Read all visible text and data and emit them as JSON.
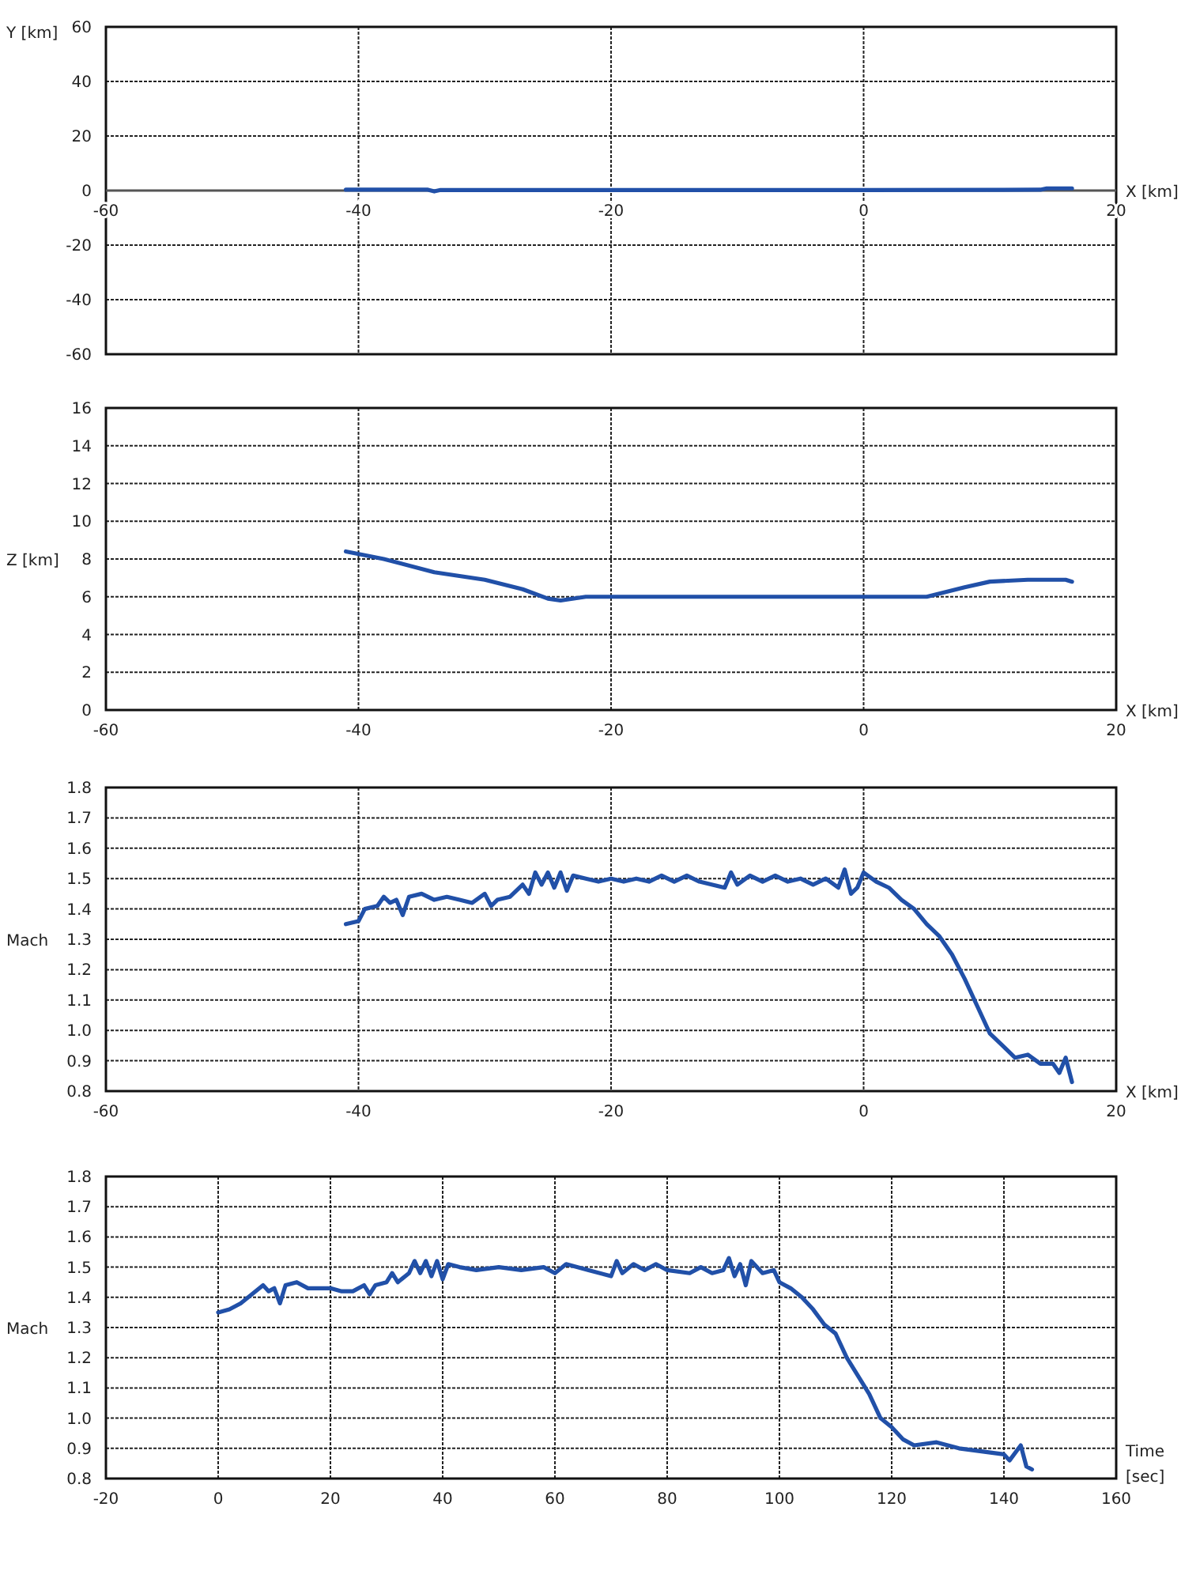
{
  "chart_data": [
    {
      "type": "line",
      "xlabel": "X [km]",
      "ylabel": "Y [km]",
      "xlim": [
        -60,
        20
      ],
      "xticks": [
        -60,
        -40,
        -20,
        0,
        20
      ],
      "ylim": [
        -60,
        60
      ],
      "yticks": [
        -60,
        -40,
        -20,
        0,
        20,
        40,
        60
      ],
      "grid": true,
      "series": [
        {
          "color": "#2150a8",
          "x": [
            -41,
            -34.5,
            -34,
            -33.5,
            -20,
            0,
            14,
            14.5,
            16.5
          ],
          "values": [
            0.3,
            0.3,
            -0.3,
            0.2,
            0.2,
            0.2,
            0.3,
            0.8,
            0.8
          ]
        }
      ]
    },
    {
      "type": "line",
      "xlabel": "X [km]",
      "ylabel": "Z [km]",
      "xlim": [
        -60,
        20
      ],
      "xticks": [
        -60,
        -40,
        -20,
        0,
        20
      ],
      "ylim": [
        0,
        16
      ],
      "yticks": [
        0,
        2,
        4,
        6,
        8,
        10,
        12,
        14,
        16
      ],
      "grid": true,
      "series": [
        {
          "color": "#2150a8",
          "x": [
            -41,
            -38,
            -34,
            -30,
            -27,
            -25,
            -24,
            -22,
            -17,
            0,
            4,
            5,
            8,
            10,
            13,
            16,
            16.5
          ],
          "values": [
            8.4,
            8.0,
            7.3,
            6.9,
            6.4,
            5.9,
            5.8,
            6.0,
            6.0,
            6.0,
            6.0,
            6.0,
            6.5,
            6.8,
            6.9,
            6.9,
            6.8
          ]
        }
      ]
    },
    {
      "type": "line",
      "xlabel": "X [km]",
      "ylabel": "Mach",
      "xlim": [
        -60,
        20
      ],
      "xticks": [
        -60,
        -40,
        -20,
        0,
        20
      ],
      "ylim": [
        0.8,
        1.8
      ],
      "yticks": [
        {
          "value": 0.8,
          "label": "0.8"
        },
        {
          "value": 0.9,
          "label": "0.9"
        },
        {
          "value": 1.0,
          "label": "1.0"
        },
        {
          "value": 1.1,
          "label": "1.1"
        },
        {
          "value": 1.2,
          "label": "1.2"
        },
        {
          "value": 1.3,
          "label": "1.3"
        },
        {
          "value": 1.4,
          "label": "1.4"
        },
        {
          "value": 1.5,
          "label": "1.5"
        },
        {
          "value": 1.6,
          "label": "1.6"
        },
        {
          "value": 1.7,
          "label": "1.7"
        },
        {
          "value": 1.8,
          "label": "1.8"
        }
      ],
      "grid": true,
      "series": [
        {
          "color": "#2150a8",
          "x": [
            -41,
            -40,
            -39.5,
            -38.5,
            -38,
            -37.5,
            -37,
            -36.5,
            -36,
            -35,
            -34,
            -33,
            -32,
            -31,
            -30,
            -29.5,
            -29,
            -28,
            -27,
            -26.5,
            -26,
            -25.5,
            -25,
            -24.5,
            -24,
            -23.5,
            -23,
            -22,
            -21,
            -20,
            -19,
            -18,
            -17,
            -16,
            -15,
            -14,
            -13,
            -11,
            -10.5,
            -10,
            -9,
            -8,
            -7,
            -6,
            -5,
            -4,
            -3,
            -2,
            -1.5,
            -1,
            -0.5,
            0,
            1,
            2,
            3,
            4,
            5,
            6,
            7,
            8,
            9,
            10,
            11,
            12,
            13,
            14,
            15,
            15.5,
            16,
            16.5
          ],
          "values": [
            1.35,
            1.36,
            1.4,
            1.41,
            1.44,
            1.42,
            1.43,
            1.38,
            1.44,
            1.45,
            1.43,
            1.44,
            1.43,
            1.42,
            1.45,
            1.41,
            1.43,
            1.44,
            1.48,
            1.45,
            1.52,
            1.48,
            1.52,
            1.47,
            1.52,
            1.46,
            1.51,
            1.5,
            1.49,
            1.5,
            1.49,
            1.5,
            1.49,
            1.51,
            1.49,
            1.51,
            1.49,
            1.47,
            1.52,
            1.48,
            1.51,
            1.49,
            1.51,
            1.49,
            1.5,
            1.48,
            1.5,
            1.47,
            1.53,
            1.45,
            1.47,
            1.52,
            1.49,
            1.47,
            1.43,
            1.4,
            1.35,
            1.31,
            1.25,
            1.17,
            1.08,
            0.99,
            0.95,
            0.91,
            0.92,
            0.89,
            0.89,
            0.86,
            0.91,
            0.83
          ]
        }
      ]
    },
    {
      "type": "line",
      "xlabel": "Time [sec]",
      "ylabel": "Mach",
      "xlim": [
        -20,
        160
      ],
      "xticks": [
        -20,
        0,
        20,
        40,
        60,
        80,
        100,
        120,
        140,
        160
      ],
      "ylim": [
        0.8,
        1.8
      ],
      "yticks": [
        {
          "value": 0.8,
          "label": "0.8"
        },
        {
          "value": 0.9,
          "label": "0.9"
        },
        {
          "value": 1.0,
          "label": "1.0"
        },
        {
          "value": 1.1,
          "label": "1.1"
        },
        {
          "value": 1.2,
          "label": "1.2"
        },
        {
          "value": 1.3,
          "label": "1.3"
        },
        {
          "value": 1.4,
          "label": "1.4"
        },
        {
          "value": 1.5,
          "label": "1.5"
        },
        {
          "value": 1.6,
          "label": "1.6"
        },
        {
          "value": 1.7,
          "label": "1.7"
        },
        {
          "value": 1.8,
          "label": "1.8"
        }
      ],
      "grid": true,
      "series": [
        {
          "color": "#2150a8",
          "x": [
            0,
            2,
            4,
            6,
            8,
            9,
            10,
            11,
            12,
            14,
            16,
            18,
            20,
            22,
            24,
            26,
            27,
            28,
            30,
            31,
            32,
            34,
            35,
            36,
            37,
            38,
            39,
            40,
            41,
            43,
            46,
            50,
            54,
            58,
            60,
            62,
            66,
            70,
            71,
            72,
            74,
            76,
            78,
            80,
            84,
            86,
            88,
            90,
            91,
            92,
            93,
            94,
            95,
            97,
            99,
            100,
            102,
            104,
            106,
            108,
            110,
            112,
            114,
            116,
            118,
            120,
            122,
            124,
            128,
            132,
            136,
            140,
            141,
            143,
            144,
            145
          ],
          "values": [
            1.35,
            1.36,
            1.38,
            1.41,
            1.44,
            1.42,
            1.43,
            1.38,
            1.44,
            1.45,
            1.43,
            1.43,
            1.43,
            1.42,
            1.42,
            1.44,
            1.41,
            1.44,
            1.45,
            1.48,
            1.45,
            1.48,
            1.52,
            1.48,
            1.52,
            1.47,
            1.52,
            1.46,
            1.51,
            1.5,
            1.49,
            1.5,
            1.49,
            1.5,
            1.48,
            1.51,
            1.49,
            1.47,
            1.52,
            1.48,
            1.51,
            1.49,
            1.51,
            1.49,
            1.48,
            1.5,
            1.48,
            1.49,
            1.53,
            1.47,
            1.51,
            1.44,
            1.52,
            1.48,
            1.49,
            1.45,
            1.43,
            1.4,
            1.36,
            1.31,
            1.28,
            1.2,
            1.14,
            1.08,
            1.0,
            0.97,
            0.93,
            0.91,
            0.92,
            0.9,
            0.89,
            0.88,
            0.86,
            0.91,
            0.84,
            0.83
          ]
        }
      ]
    }
  ]
}
